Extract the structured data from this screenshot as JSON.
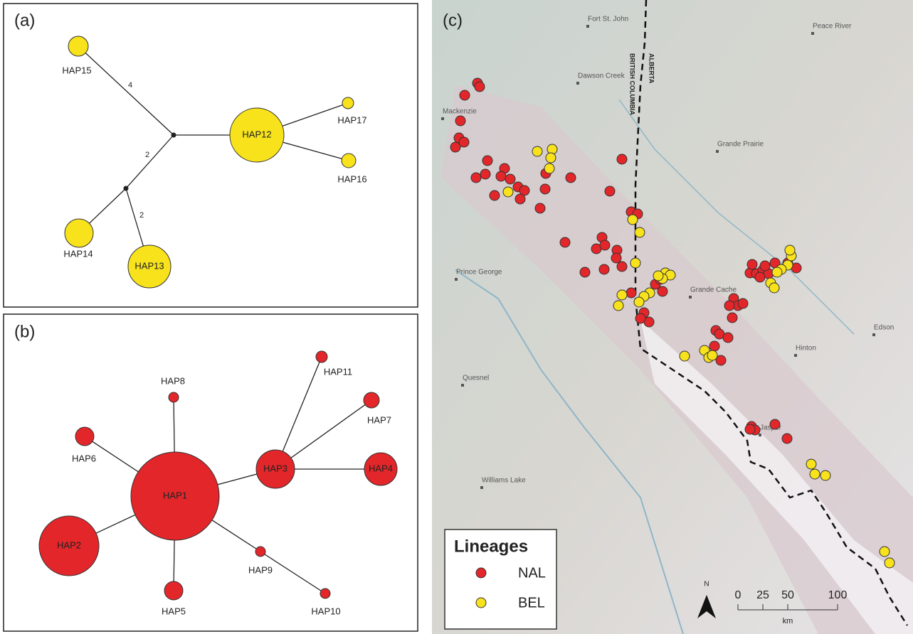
{
  "panel_a": {
    "label": "(a)",
    "nodes": [
      "HAP15",
      "HAP12",
      "HAP17",
      "HAP16",
      "HAP14",
      "HAP13"
    ],
    "edge_labels": [
      "4",
      "2",
      "2"
    ]
  },
  "panel_b": {
    "label": "(b)",
    "nodes": [
      "HAP1",
      "HAP2",
      "HAP3",
      "HAP4",
      "HAP5",
      "HAP6",
      "HAP7",
      "HAP8",
      "HAP9",
      "HAP10",
      "HAP11"
    ]
  },
  "panel_c": {
    "label": "(c)",
    "places": [
      "Fort St. John",
      "Peace River",
      "Dawson Creek",
      "Mackenzie",
      "Grande Prairie",
      "Prince George",
      "Grande Cache",
      "Edson",
      "Hinton",
      "Quesnel",
      "Jasper",
      "Williams Lake"
    ],
    "border_labels": [
      "ALBERTA",
      "BRITISH COLUMBIA"
    ],
    "legend": {
      "title": "Lineages",
      "items": [
        "NAL",
        "BEL"
      ]
    },
    "scale": {
      "ticks": [
        "0",
        "25",
        "50",
        "100"
      ],
      "unit": "km"
    },
    "north": "N"
  }
}
